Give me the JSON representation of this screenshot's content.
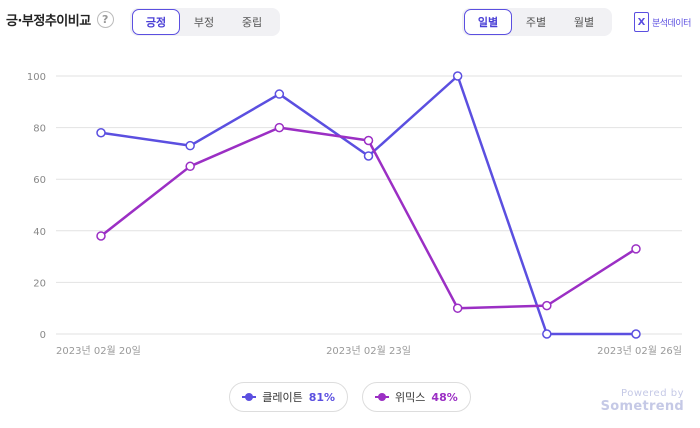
{
  "header": {
    "title": "긍·부정추이비교",
    "help_glyph": "?"
  },
  "sentiment_tabs": [
    {
      "label": "긍정",
      "active": true
    },
    {
      "label": "부정",
      "active": false
    },
    {
      "label": "중립",
      "active": false
    }
  ],
  "period_tabs": [
    {
      "label": "일별",
      "active": true
    },
    {
      "label": "주별",
      "active": false
    },
    {
      "label": "월별",
      "active": false
    }
  ],
  "export": {
    "icon_glyph": "X",
    "label": "분석데이터",
    "icon": "excel-icon"
  },
  "chart_data": {
    "type": "line",
    "x": [
      "2023-02-20",
      "2023-02-21",
      "2023-02-22",
      "2023-02-23",
      "2023-02-24",
      "2023-02-25",
      "2023-02-26"
    ],
    "x_tick_labels": [
      "2023년 02월 20일",
      "2023년 02월 23일",
      "2023년 02월 26일"
    ],
    "ylim": [
      0,
      100
    ],
    "yticks": [
      0,
      20,
      40,
      60,
      80,
      100
    ],
    "grid": true,
    "legend_position": "bottom-center",
    "series": [
      {
        "name": "클레이튼",
        "share": "81%",
        "color": "#5b4fe0",
        "values": [
          78,
          73,
          93,
          69,
          100,
          0,
          0
        ]
      },
      {
        "name": "위믹스",
        "share": "48%",
        "color": "#9b2fc4",
        "values": [
          38,
          65,
          80,
          75,
          10,
          11,
          33
        ]
      }
    ]
  },
  "branding": {
    "powered_by": "Powered by",
    "name": "Sometrend"
  }
}
